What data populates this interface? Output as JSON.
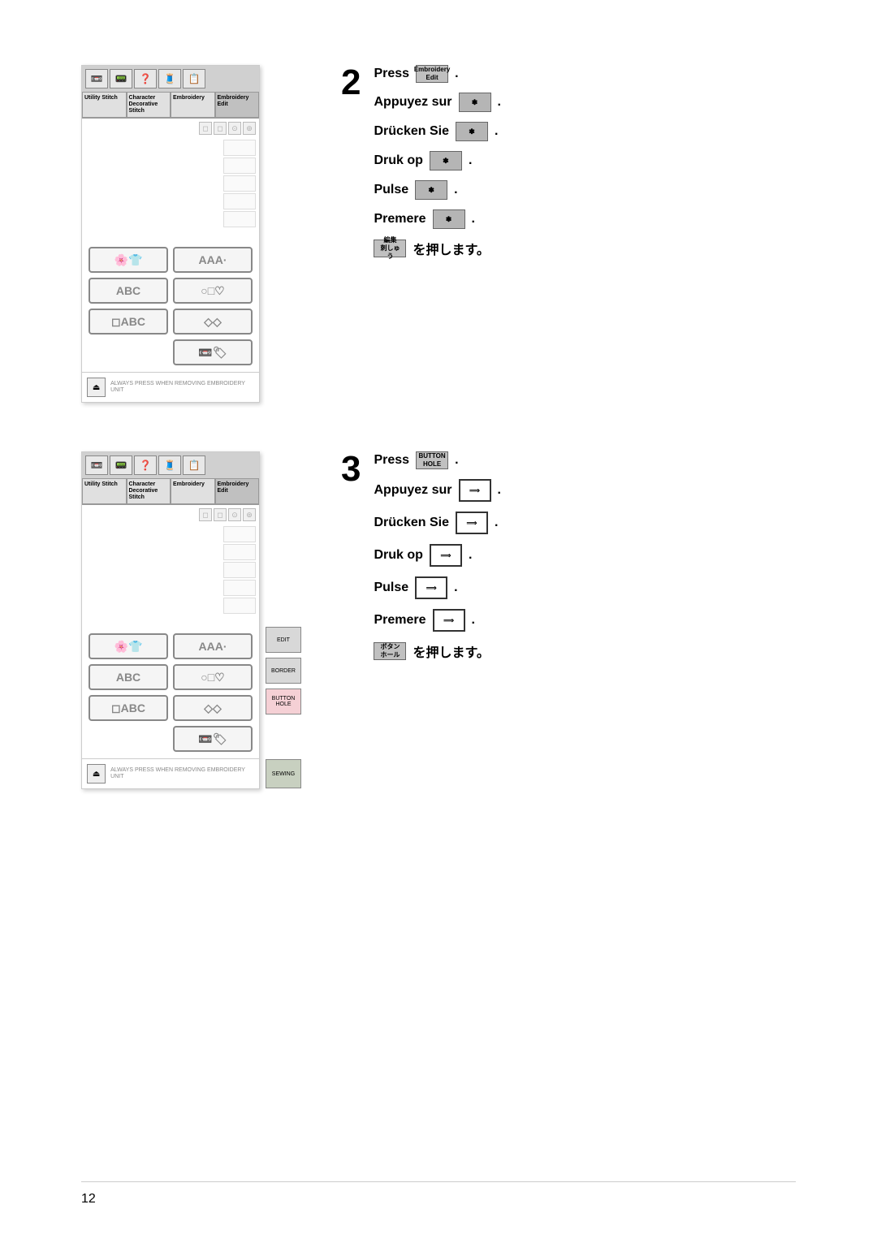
{
  "screenshot1": {
    "header_icons": [
      "📼",
      "📟",
      "❓",
      "🧵",
      "📋"
    ],
    "tabs": [
      {
        "label": "Utility\nStitch"
      },
      {
        "label": "Character\nDecorative\nStitch"
      },
      {
        "label": "Embroidery"
      },
      {
        "label": "Embroidery\nEdit"
      }
    ],
    "grid_buttons": [
      {
        "label": "🌸👕",
        "style": ""
      },
      {
        "label": "AAA·",
        "style": ""
      },
      {
        "label": "ABC",
        "style": ""
      },
      {
        "label": "○□♡",
        "style": ""
      },
      {
        "label": "◻ABC",
        "style": ""
      },
      {
        "label": "◇◇",
        "style": ""
      },
      {
        "label": "📼🏷",
        "style": "wide"
      }
    ],
    "footer_text": "ALWAYS PRESS WHEN\nREMOVING EMBROIDERY\nUNIT"
  },
  "screenshot2": {
    "header_icons": [
      "📼",
      "📟",
      "❓",
      "🧵",
      "📋"
    ],
    "tabs": [
      {
        "label": "Utility\nStitch"
      },
      {
        "label": "Character\nDecorative\nStitch"
      },
      {
        "label": "Embroidery"
      },
      {
        "label": "Embroidery\nEdit"
      }
    ],
    "grid_buttons": [
      {
        "label": "🌸👕",
        "style": ""
      },
      {
        "label": "AAA·",
        "style": ""
      },
      {
        "label": "ABC",
        "style": ""
      },
      {
        "label": "○□♡",
        "style": ""
      },
      {
        "label": "◻ABC",
        "style": ""
      },
      {
        "label": "◇◇",
        "style": ""
      },
      {
        "label": "📼🏷",
        "style": "wide"
      }
    ],
    "side_buttons": [
      {
        "label": "EDIT",
        "class": ""
      },
      {
        "label": "BORDER",
        "class": ""
      },
      {
        "label": "BUTTON\nHOLE",
        "class": "pink"
      }
    ],
    "sew_button": "SEWING",
    "footer_text": "ALWAYS PRESS WHEN\nREMOVING EMBROIDERY\nUNIT"
  },
  "step2": {
    "number": "2",
    "lines": [
      {
        "text": "Press",
        "btn_label": "Embroidery\nEdit",
        "btn_class": "gray-small"
      },
      {
        "text": "Appuyez sur",
        "btn_label": "✽",
        "btn_class": ""
      },
      {
        "text": "Drücken Sie",
        "btn_label": "✽",
        "btn_class": ""
      },
      {
        "text": "Druk op",
        "btn_label": "✽",
        "btn_class": ""
      },
      {
        "text": "Pulse",
        "btn_label": "✽",
        "btn_class": ""
      },
      {
        "text": "Premere",
        "btn_label": "✽",
        "btn_class": ""
      },
      {
        "text": "",
        "btn_label": "編集\n刺しゅう",
        "btn_class": "gray-small",
        "suffix": "を押します。"
      }
    ]
  },
  "step3": {
    "number": "3",
    "lines": [
      {
        "text": "Press",
        "btn_label": "BUTTON\nHOLE",
        "btn_class": "gray-small"
      },
      {
        "text": "Appuyez sur",
        "btn_label": "⟹",
        "btn_class": "outline"
      },
      {
        "text": "Drücken Sie",
        "btn_label": "⟹",
        "btn_class": "outline"
      },
      {
        "text": "Druk op",
        "btn_label": "⟹",
        "btn_class": "outline"
      },
      {
        "text": "Pulse",
        "btn_label": "⟹",
        "btn_class": "outline"
      },
      {
        "text": "Premere",
        "btn_label": "⟹",
        "btn_class": "outline"
      },
      {
        "text": "",
        "btn_label": "ボタン\nホール",
        "btn_class": "gray-small",
        "suffix": "を押します。"
      }
    ]
  },
  "page_number": "12"
}
